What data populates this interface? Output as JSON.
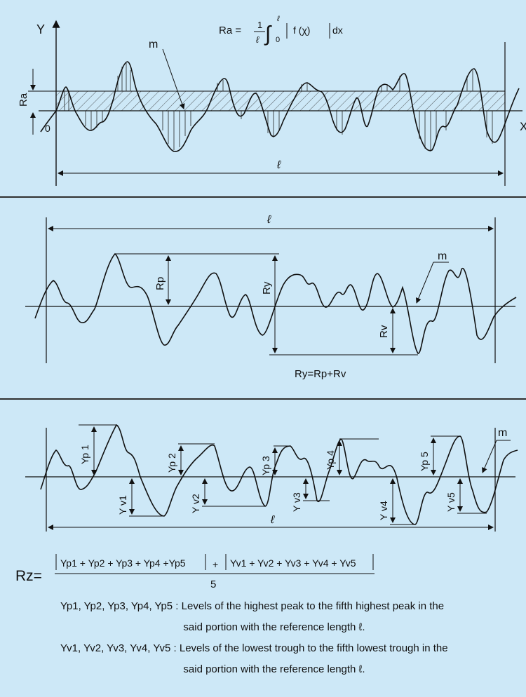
{
  "panel1": {
    "formula": {
      "lhs": "Ra =",
      "frac_num": "1",
      "frac_den": "ℓ",
      "int_upper": "ℓ",
      "int_lower": "0",
      "integrand": "f (χ)",
      "dx": "dx"
    },
    "axis_y": "Y",
    "axis_x": "X",
    "origin": "0",
    "ra_label": "Ra",
    "m_label": "m",
    "length_label": "ℓ"
  },
  "panel2": {
    "length_label": "ℓ",
    "m_label": "m",
    "rp_label": "Rp",
    "ry_label": "Ry",
    "rv_label": "Rv",
    "equation": "Ry=Rp+Rv"
  },
  "panel3": {
    "m_label": "m",
    "length_label": "ℓ",
    "peaks": [
      "Yp 1",
      "Yp 2",
      "Yp 3",
      "Yp 4",
      "Yp 5"
    ],
    "valleys": [
      "Y v1",
      "Y v2",
      "Y v3",
      "Y v4",
      "Y v5"
    ]
  },
  "rz": {
    "lhs": "Rz=",
    "numerator_left": "Yp1 + Yp2 + Yp3 + Yp4 +Yp5",
    "plus": "+",
    "numerator_right": "Yv1 + Yv2 + Yv3 + Yv4 + Yv5",
    "denominator": "5"
  },
  "definitions": {
    "yp_terms": "Yp1, Yp2, Yp3, Yp4, Yp5 :",
    "yp_line1": "Levels of the highest peak to the fifth highest peak in the",
    "yp_line2": "said portion with the reference length ℓ.",
    "yv_terms": "Yv1, Yv2, Yv3, Yv4, Yv5 :",
    "yv_line1": "Levels of the lowest trough to the fifth lowest trough in the",
    "yv_line2": "said portion with the reference length ℓ."
  },
  "colors": {
    "background": "#cde8f7",
    "ink": "#111111",
    "band_fill": "#b9d8ea"
  }
}
